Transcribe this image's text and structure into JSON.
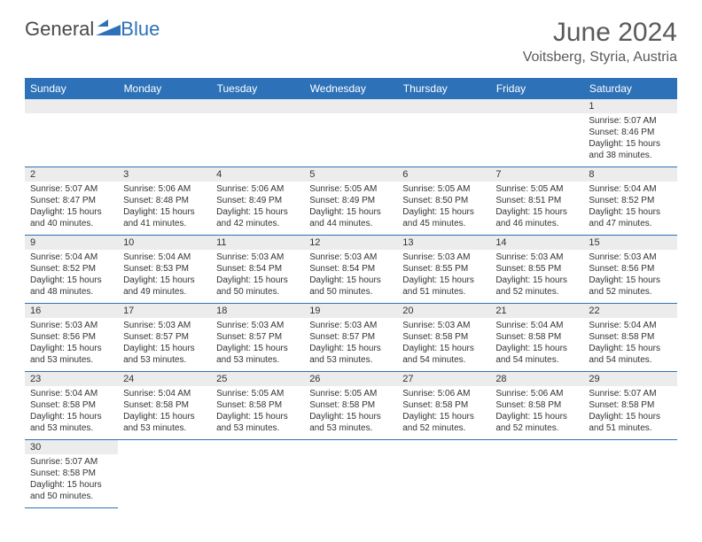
{
  "logo": {
    "part1": "General",
    "part2": "Blue"
  },
  "header": {
    "month": "June 2024",
    "location": "Voitsberg, Styria, Austria"
  },
  "weekdays": [
    "Sunday",
    "Monday",
    "Tuesday",
    "Wednesday",
    "Thursday",
    "Friday",
    "Saturday"
  ],
  "colors": {
    "header_bg": "#2d71b8",
    "header_text": "#ffffff",
    "daynum_bg": "#ececec",
    "border": "#2d71b8"
  },
  "weeks": [
    [
      null,
      null,
      null,
      null,
      null,
      null,
      {
        "n": "1",
        "sunrise": "Sunrise: 5:07 AM",
        "sunset": "Sunset: 8:46 PM",
        "daylight": "Daylight: 15 hours and 38 minutes."
      }
    ],
    [
      {
        "n": "2",
        "sunrise": "Sunrise: 5:07 AM",
        "sunset": "Sunset: 8:47 PM",
        "daylight": "Daylight: 15 hours and 40 minutes."
      },
      {
        "n": "3",
        "sunrise": "Sunrise: 5:06 AM",
        "sunset": "Sunset: 8:48 PM",
        "daylight": "Daylight: 15 hours and 41 minutes."
      },
      {
        "n": "4",
        "sunrise": "Sunrise: 5:06 AM",
        "sunset": "Sunset: 8:49 PM",
        "daylight": "Daylight: 15 hours and 42 minutes."
      },
      {
        "n": "5",
        "sunrise": "Sunrise: 5:05 AM",
        "sunset": "Sunset: 8:49 PM",
        "daylight": "Daylight: 15 hours and 44 minutes."
      },
      {
        "n": "6",
        "sunrise": "Sunrise: 5:05 AM",
        "sunset": "Sunset: 8:50 PM",
        "daylight": "Daylight: 15 hours and 45 minutes."
      },
      {
        "n": "7",
        "sunrise": "Sunrise: 5:05 AM",
        "sunset": "Sunset: 8:51 PM",
        "daylight": "Daylight: 15 hours and 46 minutes."
      },
      {
        "n": "8",
        "sunrise": "Sunrise: 5:04 AM",
        "sunset": "Sunset: 8:52 PM",
        "daylight": "Daylight: 15 hours and 47 minutes."
      }
    ],
    [
      {
        "n": "9",
        "sunrise": "Sunrise: 5:04 AM",
        "sunset": "Sunset: 8:52 PM",
        "daylight": "Daylight: 15 hours and 48 minutes."
      },
      {
        "n": "10",
        "sunrise": "Sunrise: 5:04 AM",
        "sunset": "Sunset: 8:53 PM",
        "daylight": "Daylight: 15 hours and 49 minutes."
      },
      {
        "n": "11",
        "sunrise": "Sunrise: 5:03 AM",
        "sunset": "Sunset: 8:54 PM",
        "daylight": "Daylight: 15 hours and 50 minutes."
      },
      {
        "n": "12",
        "sunrise": "Sunrise: 5:03 AM",
        "sunset": "Sunset: 8:54 PM",
        "daylight": "Daylight: 15 hours and 50 minutes."
      },
      {
        "n": "13",
        "sunrise": "Sunrise: 5:03 AM",
        "sunset": "Sunset: 8:55 PM",
        "daylight": "Daylight: 15 hours and 51 minutes."
      },
      {
        "n": "14",
        "sunrise": "Sunrise: 5:03 AM",
        "sunset": "Sunset: 8:55 PM",
        "daylight": "Daylight: 15 hours and 52 minutes."
      },
      {
        "n": "15",
        "sunrise": "Sunrise: 5:03 AM",
        "sunset": "Sunset: 8:56 PM",
        "daylight": "Daylight: 15 hours and 52 minutes."
      }
    ],
    [
      {
        "n": "16",
        "sunrise": "Sunrise: 5:03 AM",
        "sunset": "Sunset: 8:56 PM",
        "daylight": "Daylight: 15 hours and 53 minutes."
      },
      {
        "n": "17",
        "sunrise": "Sunrise: 5:03 AM",
        "sunset": "Sunset: 8:57 PM",
        "daylight": "Daylight: 15 hours and 53 minutes."
      },
      {
        "n": "18",
        "sunrise": "Sunrise: 5:03 AM",
        "sunset": "Sunset: 8:57 PM",
        "daylight": "Daylight: 15 hours and 53 minutes."
      },
      {
        "n": "19",
        "sunrise": "Sunrise: 5:03 AM",
        "sunset": "Sunset: 8:57 PM",
        "daylight": "Daylight: 15 hours and 53 minutes."
      },
      {
        "n": "20",
        "sunrise": "Sunrise: 5:03 AM",
        "sunset": "Sunset: 8:58 PM",
        "daylight": "Daylight: 15 hours and 54 minutes."
      },
      {
        "n": "21",
        "sunrise": "Sunrise: 5:04 AM",
        "sunset": "Sunset: 8:58 PM",
        "daylight": "Daylight: 15 hours and 54 minutes."
      },
      {
        "n": "22",
        "sunrise": "Sunrise: 5:04 AM",
        "sunset": "Sunset: 8:58 PM",
        "daylight": "Daylight: 15 hours and 54 minutes."
      }
    ],
    [
      {
        "n": "23",
        "sunrise": "Sunrise: 5:04 AM",
        "sunset": "Sunset: 8:58 PM",
        "daylight": "Daylight: 15 hours and 53 minutes."
      },
      {
        "n": "24",
        "sunrise": "Sunrise: 5:04 AM",
        "sunset": "Sunset: 8:58 PM",
        "daylight": "Daylight: 15 hours and 53 minutes."
      },
      {
        "n": "25",
        "sunrise": "Sunrise: 5:05 AM",
        "sunset": "Sunset: 8:58 PM",
        "daylight": "Daylight: 15 hours and 53 minutes."
      },
      {
        "n": "26",
        "sunrise": "Sunrise: 5:05 AM",
        "sunset": "Sunset: 8:58 PM",
        "daylight": "Daylight: 15 hours and 53 minutes."
      },
      {
        "n": "27",
        "sunrise": "Sunrise: 5:06 AM",
        "sunset": "Sunset: 8:58 PM",
        "daylight": "Daylight: 15 hours and 52 minutes."
      },
      {
        "n": "28",
        "sunrise": "Sunrise: 5:06 AM",
        "sunset": "Sunset: 8:58 PM",
        "daylight": "Daylight: 15 hours and 52 minutes."
      },
      {
        "n": "29",
        "sunrise": "Sunrise: 5:07 AM",
        "sunset": "Sunset: 8:58 PM",
        "daylight": "Daylight: 15 hours and 51 minutes."
      }
    ],
    [
      {
        "n": "30",
        "sunrise": "Sunrise: 5:07 AM",
        "sunset": "Sunset: 8:58 PM",
        "daylight": "Daylight: 15 hours and 50 minutes."
      },
      null,
      null,
      null,
      null,
      null,
      null
    ]
  ]
}
